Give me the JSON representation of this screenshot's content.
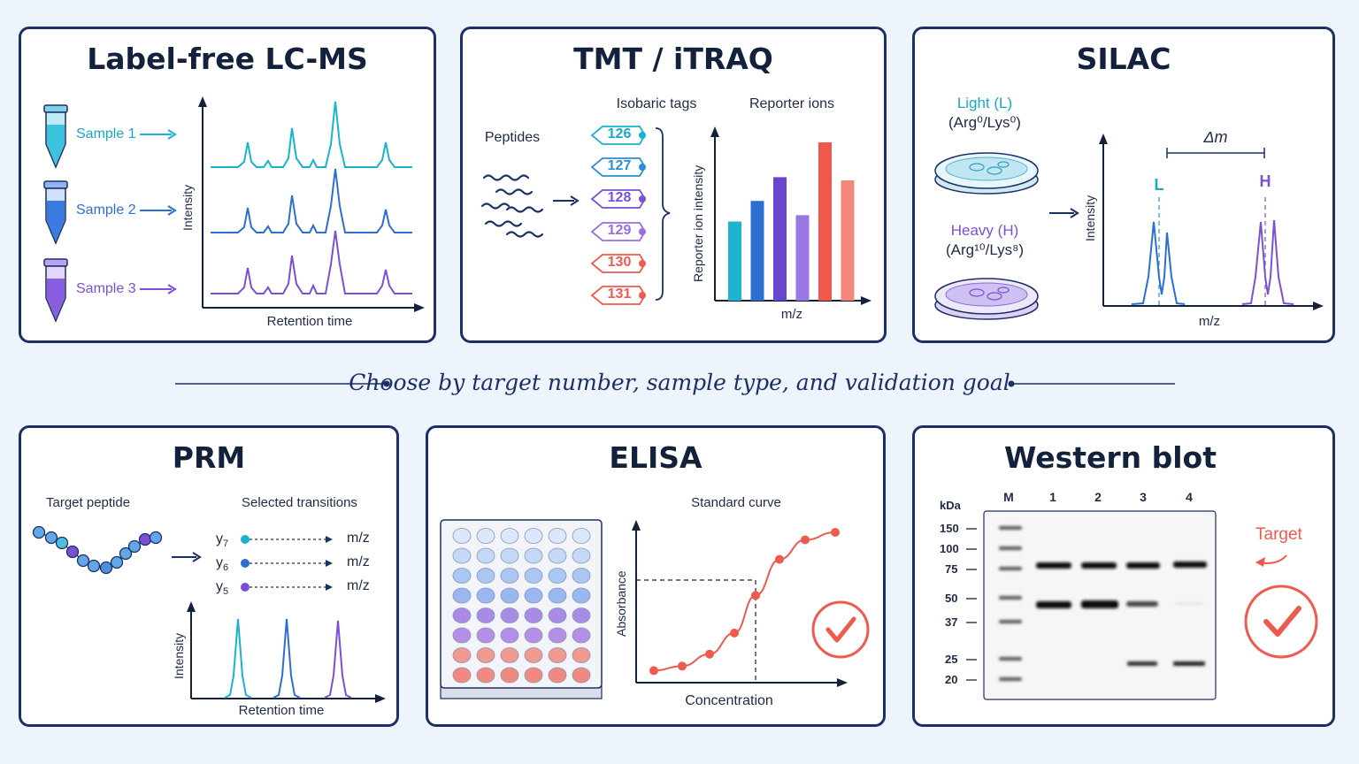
{
  "divider": {
    "text": "Choose by target number, sample type, and validation goal"
  },
  "label_free": {
    "title": "Label-free LC-MS",
    "samples": [
      "Sample 1",
      "Sample 2",
      "Sample 3"
    ],
    "y_label": "Intensity",
    "x_label": "Retention time"
  },
  "tmt": {
    "title": "TMT / iTRAQ",
    "peptides_label": "Peptides",
    "tags_label": "Isobaric tags",
    "reporter_label": "Reporter ions",
    "tags": [
      "126",
      "127",
      "128",
      "129",
      "130",
      "131"
    ],
    "y_label": "Reporter ion intensity",
    "x_label": "m/z"
  },
  "silac": {
    "title": "SILAC",
    "light_label": "Light (L)",
    "light_formula": "(Arg⁰/Lys⁰)",
    "heavy_label": "Heavy (H)",
    "heavy_formula": "(Arg¹⁰/Lys⁸)",
    "delta_label": "Δm",
    "peak_l": "L",
    "peak_h": "H",
    "y_label": "Intensity",
    "x_label": "m/z"
  },
  "prm": {
    "title": "PRM",
    "target_label": "Target peptide",
    "transitions_label": "Selected transitions",
    "transitions": [
      {
        "ion": "y",
        "sub": "7",
        "target": "m/z"
      },
      {
        "ion": "y",
        "sub": "6",
        "target": "m/z"
      },
      {
        "ion": "y",
        "sub": "5",
        "target": "m/z"
      }
    ],
    "y_label": "Intensity",
    "x_label": "Retention time"
  },
  "elisa": {
    "title": "ELISA",
    "curve_label": "Standard curve",
    "y_label": "Absorbance",
    "x_label": "Concentration"
  },
  "western": {
    "title": "Western blot",
    "kda_label": "kDa",
    "lanes": [
      "M",
      "1",
      "2",
      "3",
      "4"
    ],
    "markers": [
      "150",
      "100",
      "75",
      "50",
      "37",
      "25",
      "20"
    ],
    "target_label": "Target"
  },
  "colors": {
    "navy": "#1c2f66",
    "teal": "#19b3cf",
    "blue": "#2c6fd1",
    "purple": "#7b4fd6",
    "red": "#ef5a4f"
  },
  "chart_data": [
    {
      "type": "bar",
      "title": "Reporter ions",
      "xlabel": "m/z",
      "ylabel": "Reporter ion intensity",
      "categories": [
        "126",
        "127",
        "128",
        "129",
        "130",
        "131"
      ],
      "values": [
        0.5,
        0.63,
        0.78,
        0.54,
        1.0,
        0.76
      ],
      "ylim": [
        0,
        1.1
      ]
    },
    {
      "type": "line",
      "title": "Standard curve",
      "xlabel": "Concentration",
      "ylabel": "Absorbance",
      "x": [
        1,
        2,
        3,
        4,
        5,
        6,
        7,
        8
      ],
      "values": [
        0.08,
        0.11,
        0.19,
        0.33,
        0.58,
        0.82,
        0.95,
        1.0
      ],
      "ylim": [
        0,
        1.1
      ]
    }
  ]
}
